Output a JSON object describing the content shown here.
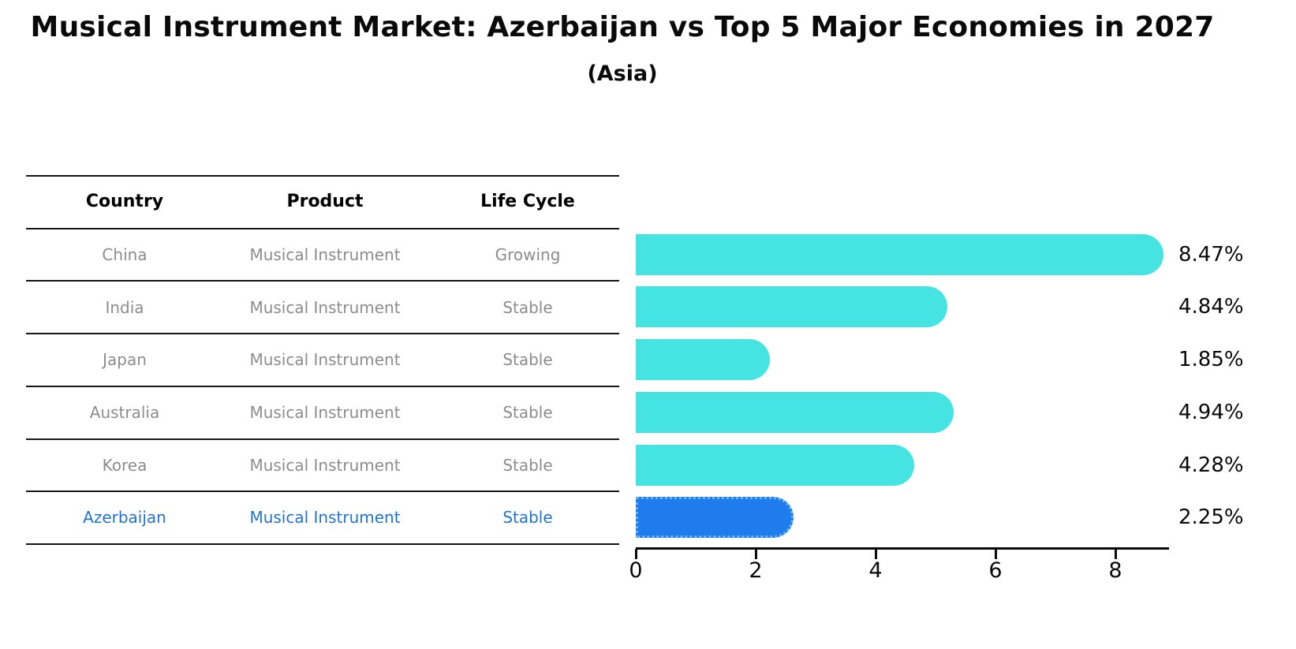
{
  "title": "Musical Instrument Market: Azerbaijan vs Top 5 Major Economies in 2027",
  "subtitle": "(Asia)",
  "table": {
    "headers": [
      "Country",
      "Product",
      "Life Cycle"
    ],
    "rows": [
      {
        "country": "China",
        "product": "Musical Instrument",
        "life_cycle": "Growing",
        "highlight": false
      },
      {
        "country": "India",
        "product": "Musical Instrument",
        "life_cycle": "Stable",
        "highlight": false
      },
      {
        "country": "Japan",
        "product": "Musical Instrument",
        "life_cycle": "Stable",
        "highlight": false
      },
      {
        "country": "Australia",
        "product": "Musical Instrument",
        "life_cycle": "Stable",
        "highlight": false
      },
      {
        "country": "Korea",
        "product": "Musical Instrument",
        "life_cycle": "Stable",
        "highlight": false
      },
      {
        "country": "Azerbaijan",
        "product": "Musical Instrument",
        "life_cycle": "Stable",
        "highlight": true
      }
    ]
  },
  "chart_data": {
    "type": "bar",
    "orientation": "horizontal",
    "title": "Musical Instrument Market: Azerbaijan vs Top 5 Major Economies in 2027 (Asia)",
    "categories": [
      "China",
      "India",
      "Japan",
      "Australia",
      "Korea",
      "Azerbaijan"
    ],
    "values": [
      8.47,
      4.84,
      1.85,
      4.94,
      4.28,
      2.25
    ],
    "value_labels": [
      "8.47%",
      "4.84%",
      "1.85%",
      "4.94%",
      "4.28%",
      "2.25%"
    ],
    "xlabel": "",
    "ylabel": "",
    "xlim": [
      0,
      8.9
    ],
    "xticks": [
      0,
      2,
      4,
      6,
      8
    ],
    "xtick_labels": [
      "0",
      "2",
      "4",
      "6",
      "8"
    ],
    "grid": false,
    "legend": null,
    "highlight_index": 5,
    "bar_color": "#45E4E2",
    "highlight_color": "#1F7CEC",
    "highlight_border_color": "#69B1F8"
  },
  "colors": {
    "row_text": "#8C8C8C",
    "header_text": "#000000",
    "highlight_text": "#1F74D2",
    "axis": "#0A0A0A"
  }
}
